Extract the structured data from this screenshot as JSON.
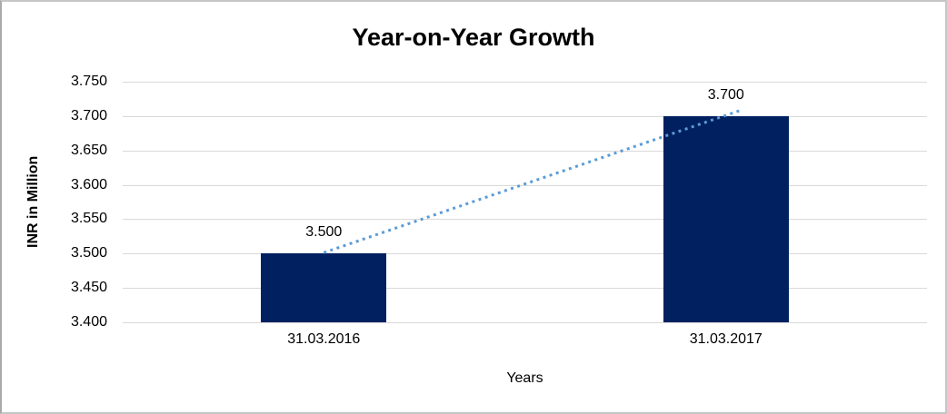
{
  "chart_data": {
    "type": "bar",
    "title": "Year-on-Year Growth",
    "xlabel": "Years",
    "ylabel": "INR in Million",
    "categories": [
      "31.03.2016",
      "31.03.2017"
    ],
    "series": [
      {
        "name": "INR in Million",
        "values": [
          3.5,
          3.7
        ],
        "labels": [
          "3.500",
          "3.700"
        ]
      }
    ],
    "trendline": {
      "style": "dotted",
      "x": [
        "31.03.2016",
        "31.03.2017"
      ],
      "values": [
        3.5,
        3.7
      ]
    },
    "ylim": [
      3.4,
      3.75
    ],
    "ytick_step": 0.05,
    "yticks": [
      "3.400",
      "3.450",
      "3.500",
      "3.550",
      "3.600",
      "3.650",
      "3.700",
      "3.750"
    ],
    "grid": true,
    "legend": "none",
    "colors": {
      "bar": "#002060",
      "trendline": "#5b9bd5",
      "gridline": "#d9d9d9",
      "text": "#000000",
      "background": "#ffffff",
      "frame_border": "#c6c6c6"
    }
  }
}
